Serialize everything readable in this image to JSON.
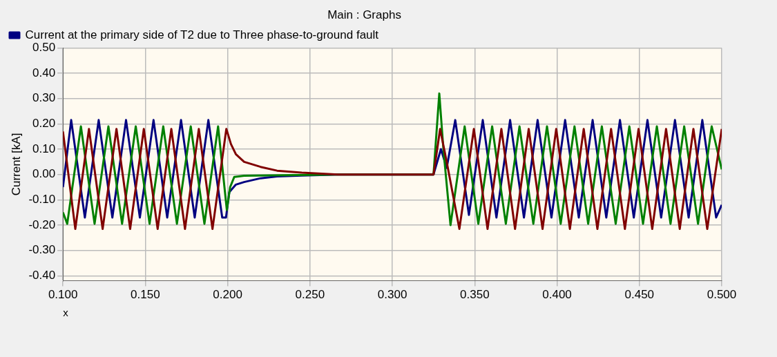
{
  "chart_data": {
    "type": "line",
    "title": "Main : Graphs",
    "xlabel": "x",
    "ylabel": "Current [kA]",
    "xlim": [
      0.1,
      0.5
    ],
    "ylim": [
      -0.42,
      0.5
    ],
    "xticks": [
      {
        "value": 0.1,
        "label": "0.100"
      },
      {
        "value": 0.15,
        "label": "0.150"
      },
      {
        "value": 0.2,
        "label": "0.200"
      },
      {
        "value": 0.25,
        "label": "0.250"
      },
      {
        "value": 0.3,
        "label": "0.300"
      },
      {
        "value": 0.35,
        "label": "0.350"
      },
      {
        "value": 0.4,
        "label": "0.400"
      },
      {
        "value": 0.45,
        "label": "0.450"
      },
      {
        "value": 0.5,
        "label": "0.500"
      }
    ],
    "yticks": [
      {
        "value": -0.4,
        "label": "-0.40"
      },
      {
        "value": -0.3,
        "label": "-0.30"
      },
      {
        "value": -0.2,
        "label": "-0.20"
      },
      {
        "value": -0.1,
        "label": "-0.10"
      },
      {
        "value": 0,
        "label": "0.00"
      },
      {
        "value": 0.1,
        "label": "0.10"
      },
      {
        "value": 0.2,
        "label": "0.20"
      },
      {
        "value": 0.3,
        "label": "0.30"
      },
      {
        "value": 0.4,
        "label": "0.40"
      },
      {
        "value": 0.5,
        "label": "0.50"
      }
    ],
    "grid": true,
    "legend": "top left",
    "marker": "none",
    "line_style": "solid",
    "series": [
      {
        "name": "Current at the primary side of T2 due to Three phase-to-ground fault",
        "color": "#000080",
        "x": [
          0.1,
          0.105,
          0.1133,
          0.1217,
          0.13,
          0.1383,
          0.1467,
          0.155,
          0.1633,
          0.1717,
          0.18,
          0.1883,
          0.1967,
          0.199,
          0.201,
          0.205,
          0.21,
          0.22,
          0.23,
          0.245,
          0.267,
          0.325,
          0.3295,
          0.333,
          0.3382,
          0.3465,
          0.3549,
          0.3632,
          0.3715,
          0.3799,
          0.3882,
          0.3966,
          0.4049,
          0.4132,
          0.4216,
          0.4299,
          0.4382,
          0.4466,
          0.4549,
          0.4632,
          0.4716,
          0.4799,
          0.4882,
          0.4966,
          0.5
        ],
        "values": [
          -0.05,
          0.215,
          -0.17,
          0.215,
          -0.17,
          0.215,
          -0.17,
          0.215,
          -0.17,
          0.215,
          -0.17,
          0.215,
          -0.17,
          -0.17,
          -0.07,
          -0.04,
          -0.03,
          -0.015,
          -0.008,
          -0.004,
          0,
          0,
          0.1,
          0.026,
          0.215,
          -0.16,
          0.215,
          -0.17,
          0.215,
          -0.17,
          0.215,
          -0.17,
          0.215,
          -0.17,
          0.215,
          -0.17,
          0.215,
          -0.17,
          0.215,
          -0.17,
          0.215,
          -0.17,
          0.215,
          -0.17,
          -0.12
        ]
      },
      {
        "color": "#008000",
        "x": [
          0.1,
          0.1026,
          0.1109,
          0.1192,
          0.1276,
          0.1359,
          0.1442,
          0.1526,
          0.1609,
          0.1692,
          0.1776,
          0.1859,
          0.1942,
          0.1995,
          0.2015,
          0.204,
          0.21,
          0.267,
          0.325,
          0.3285,
          0.331,
          0.3353,
          0.3439,
          0.3522,
          0.3606,
          0.3689,
          0.3772,
          0.3856,
          0.3939,
          0.4022,
          0.4106,
          0.4189,
          0.4272,
          0.4356,
          0.4439,
          0.4522,
          0.4606,
          0.4689,
          0.4772,
          0.4856,
          0.4939,
          0.5
        ],
        "values": [
          -0.15,
          -0.195,
          0.19,
          -0.195,
          0.19,
          -0.195,
          0.19,
          -0.195,
          0.19,
          -0.195,
          0.19,
          -0.195,
          0.19,
          -0.14,
          -0.05,
          -0.01,
          -0.005,
          0,
          0,
          0.32,
          0.1,
          -0.2,
          0.19,
          -0.195,
          0.19,
          -0.195,
          0.19,
          -0.195,
          0.19,
          -0.195,
          0.19,
          -0.195,
          0.19,
          -0.195,
          0.19,
          -0.195,
          0.19,
          -0.195,
          0.19,
          -0.195,
          0.19,
          0.02
        ]
      },
      {
        "color": "#800000",
        "x": [
          0.1,
          0.1075,
          0.1158,
          0.1241,
          0.1325,
          0.1408,
          0.1491,
          0.1575,
          0.1658,
          0.1741,
          0.1825,
          0.1908,
          0.1992,
          0.202,
          0.205,
          0.21,
          0.22,
          0.23,
          0.245,
          0.267,
          0.325,
          0.329,
          0.333,
          0.3407,
          0.3495,
          0.3578,
          0.3662,
          0.3745,
          0.3828,
          0.3912,
          0.3995,
          0.4078,
          0.4162,
          0.4245,
          0.4328,
          0.4412,
          0.4495,
          0.4578,
          0.4662,
          0.4745,
          0.4828,
          0.4912,
          0.5
        ],
        "values": [
          0.17,
          -0.215,
          0.18,
          -0.215,
          0.18,
          -0.215,
          0.18,
          -0.215,
          0.18,
          -0.215,
          0.18,
          -0.215,
          0.18,
          0.12,
          0.08,
          0.05,
          0.03,
          0.015,
          0.007,
          0,
          0,
          0.18,
          0.05,
          -0.215,
          0.18,
          -0.215,
          0.18,
          -0.215,
          0.18,
          -0.215,
          0.18,
          -0.215,
          0.18,
          -0.215,
          0.18,
          -0.215,
          0.18,
          -0.215,
          0.18,
          -0.215,
          0.18,
          -0.215,
          0.18
        ]
      }
    ]
  }
}
